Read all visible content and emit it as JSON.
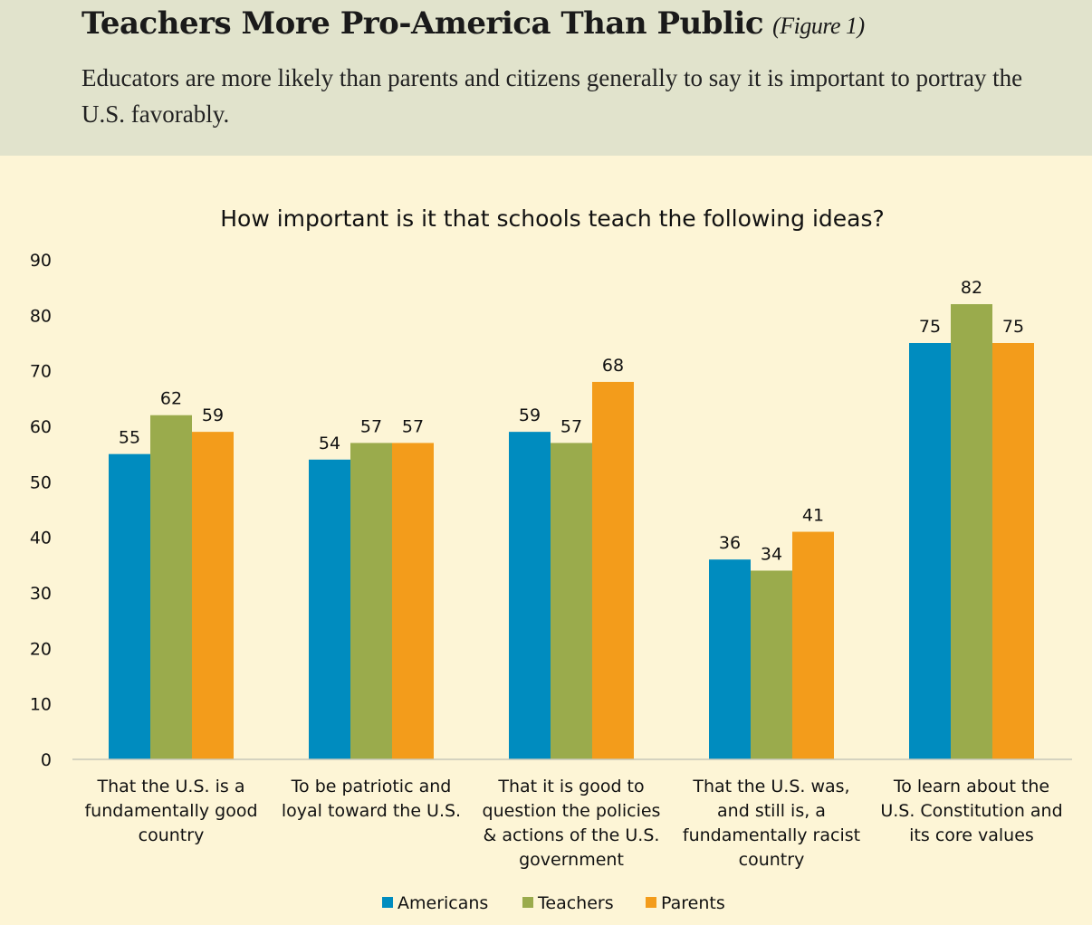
{
  "header": {
    "title": "Teachers More Pro-America Than Public",
    "figure": "(Figure 1)",
    "subtitle": "Educators are more likely than parents and citizens generally to say it is important to portray the U.S. favorably."
  },
  "chart_data": {
    "type": "bar",
    "title": "How important is it that schools teach the following ideas?",
    "categories": [
      "That the U.S. is a fundamentally good country",
      "To be patriotic and loyal toward the U.S.",
      "That it is good to question the policies & actions of the U.S. government",
      "That the U.S. was, and still is, a fundamentally racist country",
      "To learn about the U.S. Constitution and its core values"
    ],
    "category_lines": [
      [
        "That the U.S. is a",
        "fundamentally good",
        "country"
      ],
      [
        "To be patriotic and",
        "loyal toward the U.S."
      ],
      [
        "That it is good to",
        "question the policies",
        "& actions of the U.S.",
        "government"
      ],
      [
        "That the U.S. was,",
        "and still is, a",
        "fundamentally racist",
        "country"
      ],
      [
        "To learn about the",
        "U.S. Constitution and",
        "its core values"
      ]
    ],
    "series": [
      {
        "name": "Americans",
        "color": "#008cbf",
        "values": [
          55,
          54,
          59,
          36,
          75
        ]
      },
      {
        "name": "Teachers",
        "color": "#9aab4c",
        "values": [
          62,
          57,
          57,
          34,
          82
        ]
      },
      {
        "name": "Parents",
        "color": "#f39c1b",
        "values": [
          59,
          57,
          68,
          41,
          75
        ]
      }
    ],
    "ylim": [
      0,
      90
    ],
    "yticks": [
      0,
      10,
      20,
      30,
      40,
      50,
      60,
      70,
      80,
      90
    ],
    "grid": false,
    "legend": "bottom"
  }
}
